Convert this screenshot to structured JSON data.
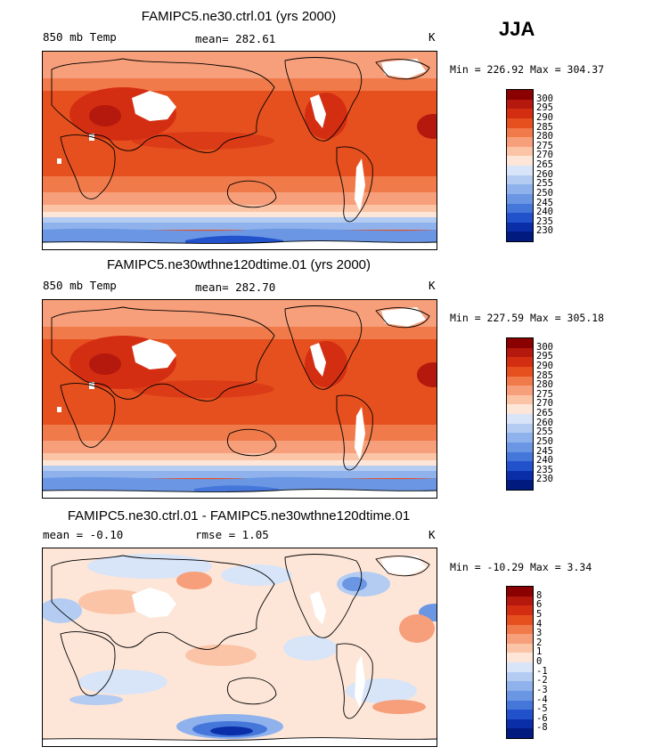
{
  "season": "JJA",
  "panels": [
    {
      "title": "FAMIPC5.ne30.ctrl.01 (yrs 2000)",
      "left_label": "850 mb Temp",
      "mean_label": "mean=  282.61",
      "right_label": "K",
      "minmax": "Min = 226.92 Max = 304.37",
      "colorbar_labels": [
        "300",
        "295",
        "290",
        "285",
        "280",
        "275",
        "270",
        "265",
        "260",
        "255",
        "250",
        "245",
        "240",
        "235",
        "230"
      ],
      "colorbar_colors": [
        "#8b0000",
        "#b5180d",
        "#d42e12",
        "#e6501f",
        "#f07a4a",
        "#f79f7a",
        "#fbc4a6",
        "#fde6d8",
        "#d8e4f8",
        "#b4ccf2",
        "#8fb2ec",
        "#6a96e4",
        "#4577db",
        "#2152cc",
        "#0a2da8",
        "#001a80"
      ]
    },
    {
      "title": "FAMIPC5.ne30wthne120dtime.01 (yrs 2000)",
      "left_label": "850 mb Temp",
      "mean_label": "mean=  282.70",
      "right_label": "K",
      "minmax": "Min = 227.59 Max = 305.18",
      "colorbar_labels": [
        "300",
        "295",
        "290",
        "285",
        "280",
        "275",
        "270",
        "265",
        "260",
        "255",
        "250",
        "245",
        "240",
        "235",
        "230"
      ],
      "colorbar_colors": [
        "#8b0000",
        "#b5180d",
        "#d42e12",
        "#e6501f",
        "#f07a4a",
        "#f79f7a",
        "#fbc4a6",
        "#fde6d8",
        "#d8e4f8",
        "#b4ccf2",
        "#8fb2ec",
        "#6a96e4",
        "#4577db",
        "#2152cc",
        "#0a2da8",
        "#001a80"
      ]
    },
    {
      "title": "FAMIPC5.ne30.ctrl.01 - FAMIPC5.ne30wthne120dtime.01",
      "left_label": "mean =   -0.10",
      "mean_label": "rmse =    1.05",
      "right_label": "K",
      "minmax": "Min = -10.29 Max =   3.34",
      "colorbar_labels": [
        "8",
        "6",
        "5",
        "4",
        "3",
        "2",
        "1",
        "0",
        "-1",
        "-2",
        "-3",
        "-4",
        "-5",
        "-6",
        "-8"
      ],
      "colorbar_colors": [
        "#8b0000",
        "#b5180d",
        "#d42e12",
        "#e6501f",
        "#f07a4a",
        "#f79f7a",
        "#fbc4a6",
        "#fde6d8",
        "#d8e4f8",
        "#b4ccf2",
        "#8fb2ec",
        "#6a96e4",
        "#4577db",
        "#2152cc",
        "#0a2da8",
        "#001a80"
      ]
    }
  ],
  "chart_data": [
    {
      "type": "heatmap",
      "title": "FAMIPC5.ne30.ctrl.01 (yrs 2000)",
      "variable": "850 mb Temp",
      "units": "K",
      "mean": 282.61,
      "min": 226.92,
      "max": 304.37,
      "contour_levels": [
        230,
        235,
        240,
        245,
        250,
        255,
        260,
        265,
        270,
        275,
        280,
        285,
        290,
        295,
        300
      ]
    },
    {
      "type": "heatmap",
      "title": "FAMIPC5.ne30wthne120dtime.01 (yrs 2000)",
      "variable": "850 mb Temp",
      "units": "K",
      "mean": 282.7,
      "min": 227.59,
      "max": 305.18,
      "contour_levels": [
        230,
        235,
        240,
        245,
        250,
        255,
        260,
        265,
        270,
        275,
        280,
        285,
        290,
        295,
        300
      ]
    },
    {
      "type": "heatmap",
      "title": "FAMIPC5.ne30.ctrl.01 - FAMIPC5.ne30wthne120dtime.01",
      "units": "K",
      "mean": -0.1,
      "rmse": 1.05,
      "min": -10.29,
      "max": 3.34,
      "contour_levels": [
        -8,
        -6,
        -5,
        -4,
        -3,
        -2,
        -1,
        0,
        1,
        2,
        3,
        4,
        5,
        6,
        8
      ]
    }
  ]
}
